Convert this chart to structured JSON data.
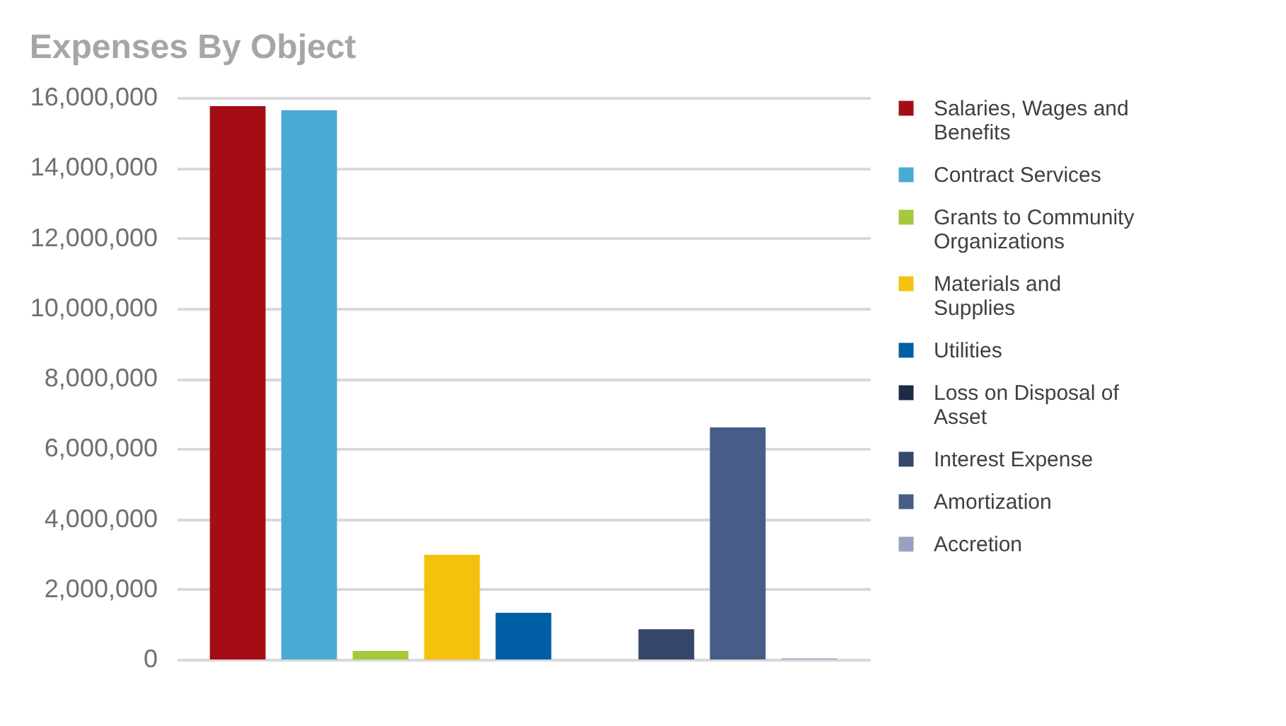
{
  "chart_data": {
    "type": "bar",
    "title": "Expenses By Object",
    "categories": [
      null
    ],
    "series": [
      {
        "name": "Salaries, Wages and Benefits",
        "color": "#a50d15",
        "values": [
          15760000
        ]
      },
      {
        "name": "Contract Services",
        "color": "#4aaad4",
        "values": [
          15640000
        ]
      },
      {
        "name": "Grants to Community Organizations",
        "color": "#a4c93a",
        "values": [
          240000
        ]
      },
      {
        "name": "Materials and Supplies",
        "color": "#f4c20d",
        "values": [
          2980000
        ]
      },
      {
        "name": "Utilities",
        "color": "#005ea5",
        "values": [
          1330000
        ]
      },
      {
        "name": "Loss on Disposal of Asset",
        "color": "#1f2a44",
        "values": [
          0
        ]
      },
      {
        "name": "Interest Expense",
        "color": "#34466a",
        "values": [
          860000
        ]
      },
      {
        "name": "Amortization",
        "color": "#465e87",
        "values": [
          6610000
        ]
      },
      {
        "name": "Accretion",
        "color": "#98a2c0",
        "values": [
          30000
        ]
      }
    ],
    "ylim": [
      0,
      16000000
    ],
    "yticks": [
      0,
      {
        "value": 2000000,
        "label": "2,000,000"
      },
      {
        "value": 4000000,
        "label": "4,000,000"
      },
      {
        "value": 6000000,
        "label": "6,000,000"
      },
      {
        "value": 8000000,
        "label": "8,000,000"
      },
      {
        "value": 10000000,
        "label": "10,000,000"
      },
      {
        "value": 12000000,
        "label": "12,000,000"
      },
      {
        "value": 14000000,
        "label": "14,000,000"
      },
      {
        "value": 16000000,
        "label": "16,000,000"
      }
    ],
    "grid": "y",
    "legend": "right",
    "tick_labels": "y"
  }
}
